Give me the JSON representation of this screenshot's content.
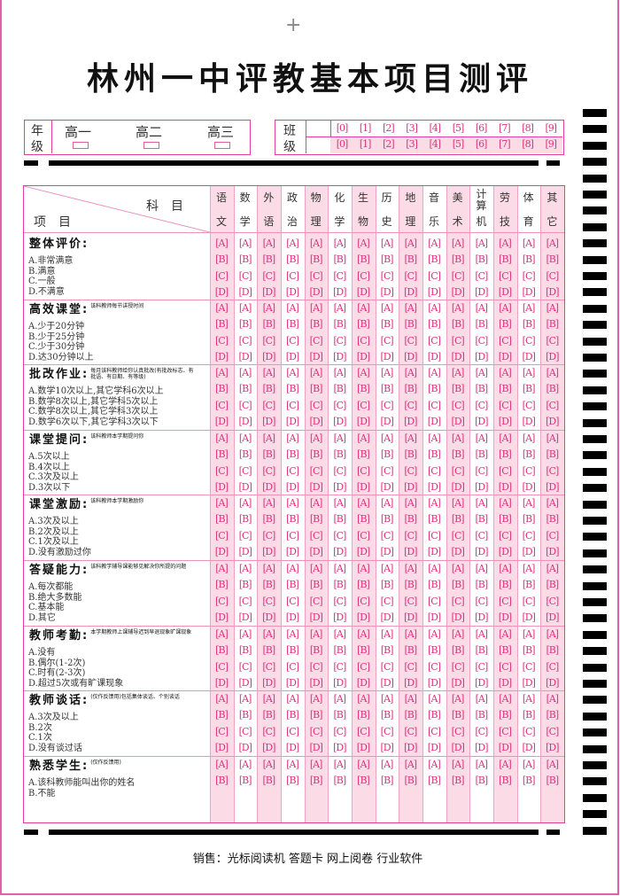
{
  "title": "林州一中评教基本项目测评",
  "grade": {
    "label": [
      "年",
      "级"
    ],
    "options": [
      "高一",
      "高二",
      "高三"
    ]
  },
  "class": {
    "label": [
      "班",
      "级"
    ],
    "digits": [
      "0",
      "1",
      "2",
      "3",
      "4",
      "5",
      "6",
      "7",
      "8",
      "9"
    ]
  },
  "table_header": {
    "subject_label": "科　目",
    "item_label": "项　目"
  },
  "subjects": [
    [
      "语",
      "文"
    ],
    [
      "数",
      "学"
    ],
    [
      "外",
      "语"
    ],
    [
      "政",
      "治"
    ],
    [
      "物",
      "理"
    ],
    [
      "化",
      "学"
    ],
    [
      "生",
      "物"
    ],
    [
      "历",
      "史"
    ],
    [
      "地",
      "理"
    ],
    [
      "音",
      "乐"
    ],
    [
      "美",
      "术"
    ],
    [
      "计算",
      "机"
    ],
    [
      "劳",
      "技"
    ],
    [
      "体",
      "育"
    ],
    [
      "其",
      "它"
    ]
  ],
  "bubble_letters": [
    "A",
    "B",
    "C",
    "D"
  ],
  "sections": [
    {
      "title": "整体评价",
      "note": "",
      "options": [
        "A.非常满意",
        "B.满意",
        "C.一般",
        "D.不满意"
      ]
    },
    {
      "title": "高效课堂",
      "note": "该科教师每节讲授时间",
      "options": [
        "A.少于20分钟",
        "B.少于25分钟",
        "C.少于30分钟",
        "D.达30分钟以上"
      ]
    },
    {
      "title": "批改作业",
      "note": "每月该科教师给你认真批改(有批改标志、有批语、有日期、有等级)",
      "options": [
        "A.数学10次以上,其它学科6次以上",
        "B.数学8次以上,其它学科5次以上",
        "C.数学8次以上,其它学科3次以上",
        "D.数学6次以下,其它学科3次以下"
      ]
    },
    {
      "title": "课堂提问",
      "note": "该科教师本学期提问你",
      "options": [
        "A.5次以上",
        "B.4次以上",
        "C.3次及以上",
        "D.3次以下"
      ]
    },
    {
      "title": "课堂激励",
      "note": "该科教师本学期激励你",
      "options": [
        "A.3次及以上",
        "B.2次及以上",
        "C.1次及以上",
        "D.没有激励过你"
      ]
    },
    {
      "title": "答疑能力",
      "note": "该科教学辅导课能够见解决你所提的问题",
      "options": [
        "A.每次都能",
        "B.绝大多数能",
        "C.基本能",
        "D.其它"
      ]
    },
    {
      "title": "教师考勤",
      "note": "本学期教师上课辅导迟到早退现象旷课现象",
      "options": [
        "A.没有",
        "B.偶尔(1-2次)",
        "C.时有(2-3次)",
        "D.超过5次或有旷课现象"
      ]
    },
    {
      "title": "教师谈话",
      "note": "(仅作反馈用)包括集体谈话、个别谈话",
      "options": [
        "A.3次及以上",
        "B.2次",
        "C.1次",
        "D.没有谈过话"
      ]
    },
    {
      "title": "熟悉学生",
      "note": "(仅作反馈用)",
      "options": [
        "A.该科教师能叫出你的姓名",
        "B.不能"
      ]
    }
  ],
  "footer": "销售：光标阅读机 答题卡 网上阅卷 行业软件",
  "colors": {
    "accent": "#e0307f",
    "shade": "#fbdbe6",
    "border": "#e0409a"
  }
}
